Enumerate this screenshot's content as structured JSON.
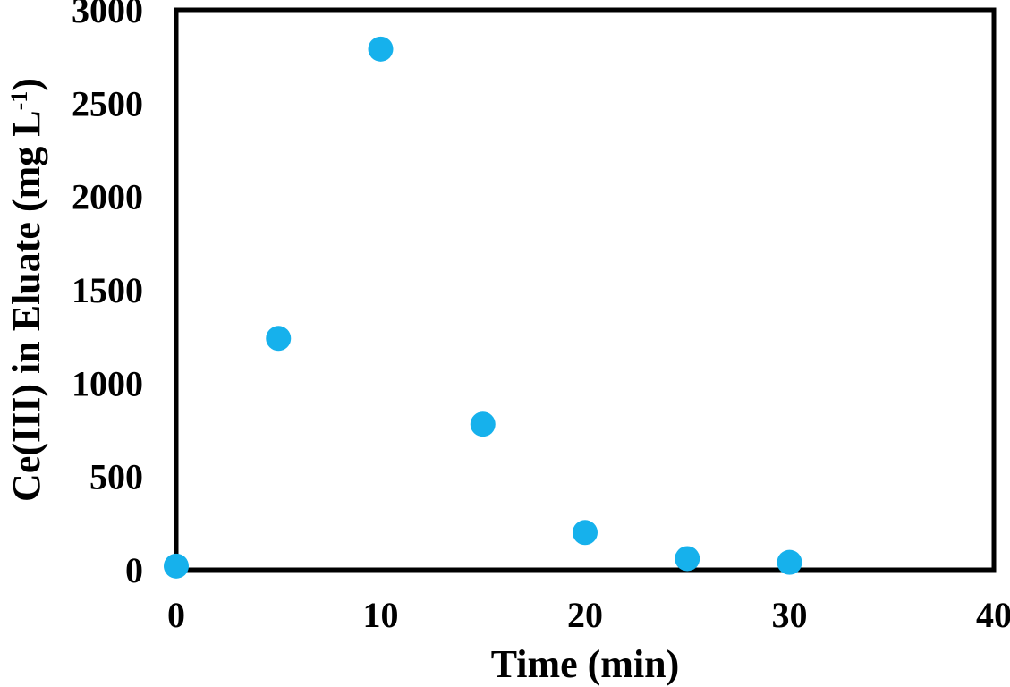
{
  "chart_data": {
    "type": "scatter",
    "title": "",
    "xlabel": "Time (min)",
    "ylabel": {
      "main": "Ce(III) in Eluate (mg L",
      "superscript": "-1",
      "close": ")"
    },
    "xlim": [
      0,
      40
    ],
    "ylim": [
      0,
      3000
    ],
    "xticks": [
      "0",
      "10",
      "20",
      "30",
      "40"
    ],
    "yticks": [
      "0",
      "500",
      "1000",
      "1500",
      "2000",
      "2500",
      "3000"
    ],
    "grid": false,
    "legend": "none",
    "marker_color": "#16b1ec",
    "series": [
      {
        "x": [
          0,
          5,
          10,
          15,
          20,
          25,
          30
        ],
        "y": [
          20,
          1240,
          2790,
          780,
          200,
          60,
          40
        ]
      }
    ]
  }
}
